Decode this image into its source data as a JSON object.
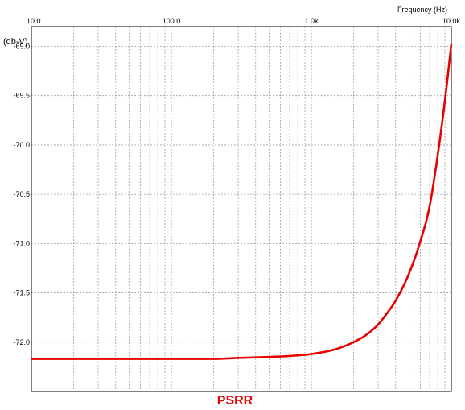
{
  "chart_data": {
    "type": "line",
    "x_scale": "log",
    "xlim": [
      10,
      10000
    ],
    "ylim": [
      -72.5,
      -68.8
    ],
    "grid": true,
    "xlabel": "Frequency   (Hz)",
    "ylabel": "(db-V)",
    "caption": "PSRR",
    "x_ticks": [
      {
        "value": 10,
        "label": "10.0"
      },
      {
        "value": 100,
        "label": "100.0"
      },
      {
        "value": 1000,
        "label": "1.0k"
      },
      {
        "value": 10000,
        "label": "10.0k"
      }
    ],
    "y_ticks": [
      {
        "value": -69.0,
        "label": "-69.0"
      },
      {
        "value": -69.5,
        "label": "-69.5"
      },
      {
        "value": -70.0,
        "label": "-70.0"
      },
      {
        "value": -70.5,
        "label": "-70.5"
      },
      {
        "value": -71.0,
        "label": "-71.0"
      },
      {
        "value": -71.5,
        "label": "-71.5"
      },
      {
        "value": -72.0,
        "label": "-72.0"
      }
    ],
    "series": [
      {
        "color": "#e80000",
        "x": [
          10,
          20,
          50,
          100,
          200,
          300,
          500,
          700,
          1000,
          1500,
          2000,
          2500,
          3000,
          3500,
          4000,
          5000,
          6000,
          7000,
          8000,
          9000,
          10000
        ],
        "y": [
          -72.17,
          -72.17,
          -72.17,
          -72.17,
          -72.17,
          -72.16,
          -72.15,
          -72.14,
          -72.12,
          -72.07,
          -72.0,
          -71.92,
          -71.82,
          -71.7,
          -71.58,
          -71.3,
          -70.98,
          -70.62,
          -70.1,
          -69.55,
          -68.98
        ]
      }
    ]
  },
  "colors": {
    "line": "#e80000",
    "grid": "#a0a0a0",
    "axis": "#000000",
    "caption": "#e80000"
  }
}
